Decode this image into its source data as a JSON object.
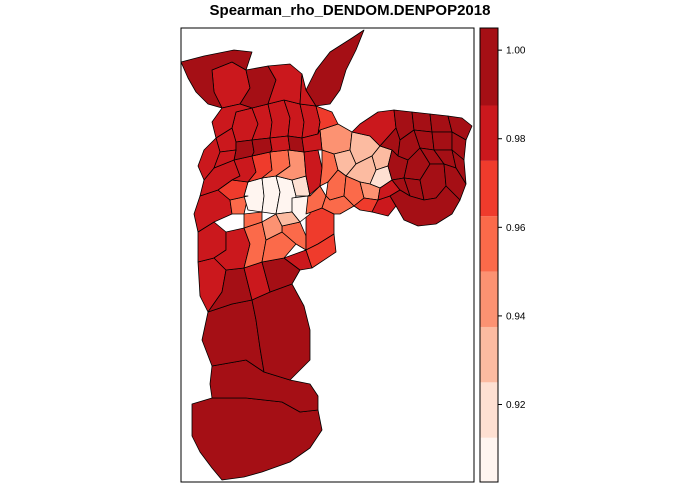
{
  "title": "Spearman_rho_DENDOM.DENPOP2018",
  "legend": {
    "ticks": [
      "0.92",
      "0.94",
      "0.96",
      "0.98",
      "1.00"
    ],
    "tick_values": [
      0.92,
      0.94,
      0.96,
      0.98,
      1.0
    ],
    "range": [
      0.9025,
      1.005
    ],
    "breaks": [
      0.9025,
      0.9125,
      0.925,
      0.9375,
      0.95,
      0.9625,
      0.975,
      0.9875,
      1.005
    ],
    "colors": [
      "#fff5f0",
      "#fee0d2",
      "#fcbba1",
      "#fc9272",
      "#fb6a4a",
      "#ef3b2c",
      "#cb181d",
      "#a50f15"
    ]
  },
  "map": {
    "border_color": "#000000",
    "palette_note_colors": {
      "darkest": "#a50f15",
      "dark": "#cb181d",
      "mid": "#fb6a4a",
      "light": "#fcbba1",
      "lightest": "#fff5f0"
    }
  }
}
